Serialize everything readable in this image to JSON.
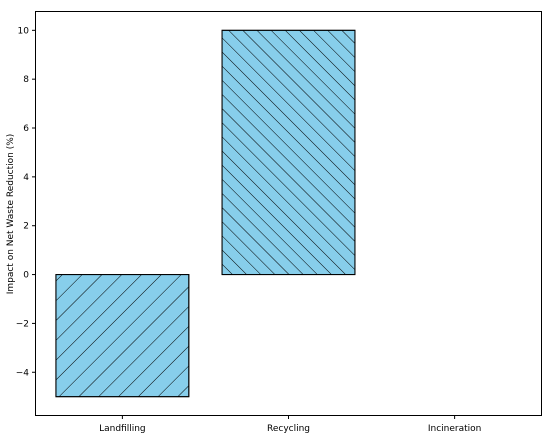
{
  "chart_data": {
    "type": "bar",
    "title": "",
    "xlabel": "",
    "ylabel": "Impact on Net Waste Reduction (%)",
    "categories": [
      "Landfilling",
      "Recycling",
      "Incineration"
    ],
    "values": [
      -5,
      10,
      0
    ],
    "ylim": [
      -5.75,
      10.75
    ],
    "yticks": [
      -4,
      -2,
      0,
      2,
      4,
      6,
      8,
      10
    ],
    "ytick_labels": [
      "−4",
      "−2",
      "0",
      "2",
      "4",
      "6",
      "8",
      "10"
    ],
    "bar_color": "#87ceeb",
    "edge_color": "#000000",
    "hatch": [
      "backslash",
      "slash",
      "none"
    ],
    "grid": false,
    "legend": "none"
  }
}
